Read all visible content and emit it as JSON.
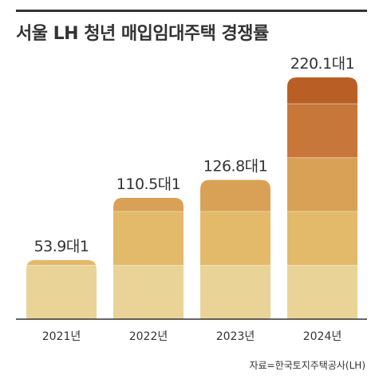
{
  "header": {
    "title": "서울 LH 청년 매입임대주택 경쟁률"
  },
  "source": "자료=한국토지주택공사(LH)",
  "colors": {
    "band_1": "#ead397",
    "band_2": "#e3b96a",
    "band_3": "#d9a156",
    "band_4": "#c8773a",
    "band_5": "#b95f25",
    "axis": "#333333",
    "text": "#333333"
  },
  "chart_data": {
    "type": "bar",
    "title": "서울 LH 청년 매입임대주택 경쟁률",
    "xlabel": "",
    "ylabel": "",
    "categories": [
      "2021년",
      "2022년",
      "2023년",
      "2024년"
    ],
    "values": [
      53.9,
      110.5,
      126.8,
      220.1
    ],
    "data_labels": [
      "53.9대1",
      "110.5대1",
      "126.8대1",
      "220.1대1"
    ],
    "ylim": [
      0,
      240
    ],
    "grid": false,
    "legend": "none"
  }
}
